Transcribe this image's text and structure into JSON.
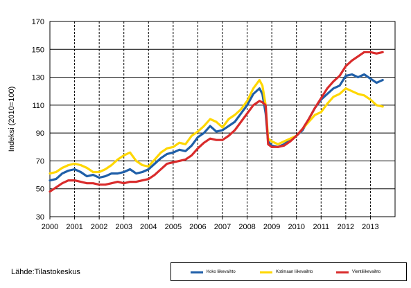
{
  "source_label": "Lähde:Tilastokeskus",
  "chart_data": {
    "type": "line",
    "title": "",
    "xlabel": "",
    "ylabel": "Indeksi (2010=100)",
    "ylim": [
      30,
      170
    ],
    "yticks": [
      30,
      50,
      70,
      90,
      110,
      130,
      150,
      170
    ],
    "xlim": [
      2000,
      2014
    ],
    "xticks": [
      "2000",
      "2001",
      "2002",
      "2003",
      "2004",
      "2005",
      "2006",
      "2007",
      "2008",
      "2009",
      "2010",
      "2011",
      "2012",
      "2013"
    ],
    "grid": {
      "horizontal": "solid",
      "vertical": "dashed"
    },
    "legend_position": "bottom-right",
    "series": [
      {
        "name": "Koko liikevaihto",
        "color": "#1f5fa8",
        "x": [
          2000.0,
          2000.25,
          2000.5,
          2000.75,
          2001.0,
          2001.25,
          2001.5,
          2001.75,
          2002.0,
          2002.25,
          2002.5,
          2002.75,
          2003.0,
          2003.25,
          2003.5,
          2003.75,
          2004.0,
          2004.25,
          2004.5,
          2004.75,
          2005.0,
          2005.25,
          2005.5,
          2005.75,
          2006.0,
          2006.25,
          2006.5,
          2006.75,
          2007.0,
          2007.25,
          2007.5,
          2007.75,
          2008.0,
          2008.25,
          2008.5,
          2008.62,
          2008.75,
          2008.85,
          2009.0,
          2009.25,
          2009.5,
          2009.75,
          2010.0,
          2010.25,
          2010.5,
          2010.75,
          2011.0,
          2011.25,
          2011.5,
          2011.75,
          2012.0,
          2012.25,
          2012.5,
          2012.75,
          2013.0,
          2013.25,
          2013.5
        ],
        "y": [
          56,
          57,
          61,
          63,
          64,
          62,
          59,
          60,
          58,
          59,
          61,
          61,
          62,
          64,
          61,
          62,
          64,
          68,
          72,
          75,
          76,
          78,
          77,
          81,
          87,
          90,
          95,
          91,
          92,
          95,
          98,
          104,
          110,
          118,
          122,
          118,
          104,
          84,
          81,
          80,
          82,
          85,
          88,
          92,
          100,
          108,
          114,
          118,
          122,
          124,
          131,
          132,
          130,
          132,
          129,
          126,
          128
        ]
      },
      {
        "name": "Kotimaan liikevaihto",
        "color": "#ffd700",
        "x": [
          2000.0,
          2000.25,
          2000.5,
          2000.75,
          2001.0,
          2001.25,
          2001.5,
          2001.75,
          2002.0,
          2002.25,
          2002.5,
          2002.75,
          2003.0,
          2003.25,
          2003.5,
          2003.75,
          2004.0,
          2004.25,
          2004.5,
          2004.75,
          2005.0,
          2005.25,
          2005.5,
          2005.75,
          2006.0,
          2006.25,
          2006.5,
          2006.75,
          2007.0,
          2007.25,
          2007.5,
          2007.75,
          2008.0,
          2008.25,
          2008.5,
          2008.62,
          2008.75,
          2008.85,
          2009.0,
          2009.25,
          2009.5,
          2009.75,
          2010.0,
          2010.25,
          2010.5,
          2010.75,
          2011.0,
          2011.25,
          2011.5,
          2011.75,
          2012.0,
          2012.25,
          2012.5,
          2012.75,
          2013.0,
          2013.25,
          2013.5
        ],
        "y": [
          61,
          62,
          65,
          67,
          68,
          67,
          65,
          62,
          62,
          64,
          67,
          71,
          74,
          76,
          70,
          67,
          66,
          71,
          76,
          79,
          80,
          83,
          82,
          88,
          91,
          95,
          100,
          98,
          94,
          100,
          103,
          107,
          113,
          122,
          128,
          124,
          110,
          86,
          84,
          82,
          84,
          86,
          88,
          93,
          98,
          103,
          105,
          111,
          116,
          118,
          122,
          120,
          118,
          117,
          114,
          110,
          109
        ]
      },
      {
        "name": "Vientiliikevaihto",
        "color": "#d92b2b",
        "x": [
          2000.0,
          2000.25,
          2000.5,
          2000.75,
          2001.0,
          2001.25,
          2001.5,
          2001.75,
          2002.0,
          2002.25,
          2002.5,
          2002.75,
          2003.0,
          2003.25,
          2003.5,
          2003.75,
          2004.0,
          2004.25,
          2004.5,
          2004.75,
          2005.0,
          2005.25,
          2005.5,
          2005.75,
          2006.0,
          2006.25,
          2006.5,
          2006.75,
          2007.0,
          2007.25,
          2007.5,
          2007.75,
          2008.0,
          2008.25,
          2008.5,
          2008.62,
          2008.75,
          2008.85,
          2009.0,
          2009.25,
          2009.5,
          2009.75,
          2010.0,
          2010.25,
          2010.5,
          2010.75,
          2011.0,
          2011.25,
          2011.5,
          2011.75,
          2012.0,
          2012.25,
          2012.5,
          2012.75,
          2013.0,
          2013.25,
          2013.5
        ],
        "y": [
          48,
          51,
          54,
          56,
          56,
          55,
          54,
          54,
          53,
          53,
          54,
          55,
          54,
          55,
          55,
          56,
          57,
          60,
          64,
          68,
          69,
          70,
          71,
          74,
          79,
          83,
          86,
          85,
          85,
          88,
          92,
          98,
          104,
          110,
          113,
          112,
          110,
          82,
          80,
          80,
          81,
          84,
          88,
          93,
          100,
          108,
          115,
          122,
          127,
          131,
          138,
          142,
          145,
          148,
          148,
          147,
          148
        ]
      }
    ]
  }
}
